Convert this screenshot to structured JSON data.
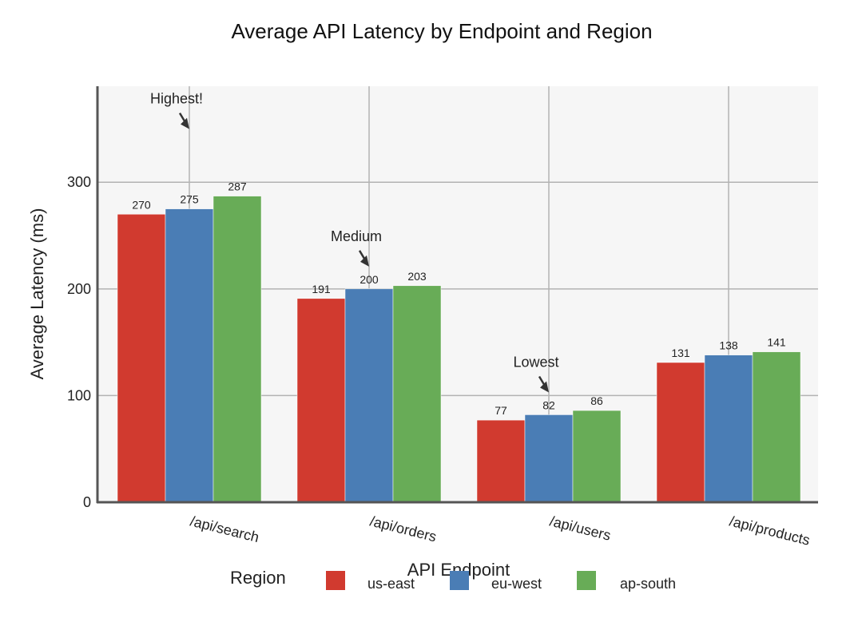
{
  "chart_data": {
    "type": "bar",
    "title": "Average API Latency by Endpoint and Region",
    "xlabel": "API Endpoint",
    "ylabel": "Average Latency (ms)",
    "ylim": [
      0,
      390
    ],
    "yticks": [
      0,
      100,
      200,
      300
    ],
    "grid": true,
    "categories": [
      "/api/search",
      "/api/orders",
      "/api/users",
      "/api/products"
    ],
    "series": [
      {
        "name": "us-east",
        "color": "#d13a2f",
        "values": [
          270,
          191,
          77,
          131
        ]
      },
      {
        "name": "eu-west",
        "color": "#4a7db5",
        "values": [
          275,
          200,
          82,
          138
        ]
      },
      {
        "name": "ap-south",
        "color": "#68ac57",
        "values": [
          287,
          203,
          86,
          141
        ]
      }
    ],
    "legend": {
      "title": "Region",
      "placement": "bottom"
    },
    "annotations": [
      {
        "text": "Highest!",
        "category": "/api/search",
        "series": "eu-west"
      },
      {
        "text": "Medium",
        "category": "/api/orders",
        "series": "eu-west"
      },
      {
        "text": "Lowest",
        "category": "/api/users",
        "series": "eu-west"
      }
    ]
  }
}
